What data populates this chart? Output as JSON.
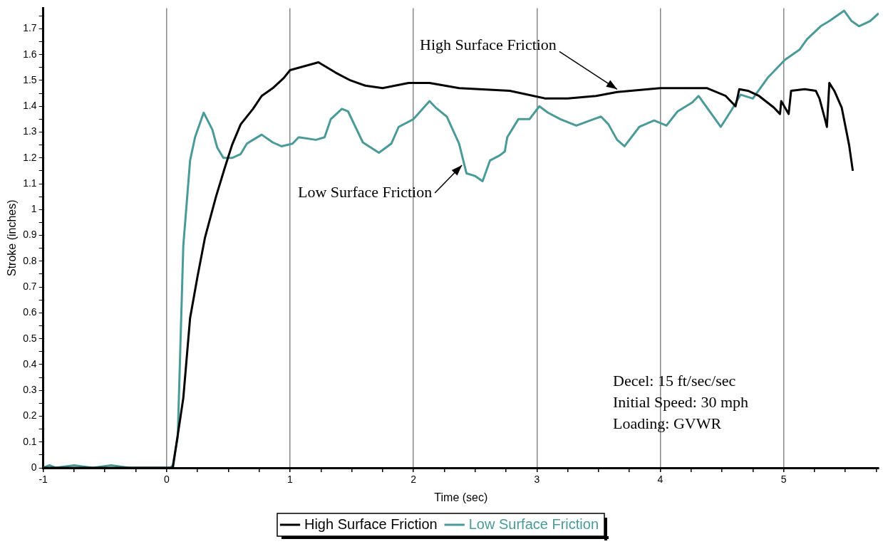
{
  "chart_data": {
    "type": "line",
    "xlabel": "Time (sec)",
    "ylabel": "Stroke (inches)",
    "xlim": [
      -1,
      5.77
    ],
    "ylim": [
      0,
      1.78
    ],
    "xticks": [
      -1,
      {
        "value": -0.75,
        "label": null
      },
      {
        "value": -0.5,
        "label": null
      },
      {
        "value": -0.25,
        "label": null
      },
      0,
      {
        "value": 0.25,
        "label": null
      },
      {
        "value": 0.5,
        "label": null
      },
      {
        "value": 0.75,
        "label": null
      },
      1,
      {
        "value": 1.25,
        "label": null
      },
      {
        "value": 1.5,
        "label": null
      },
      {
        "value": 1.75,
        "label": null
      },
      2,
      {
        "value": 2.25,
        "label": null
      },
      {
        "value": 2.5,
        "label": null
      },
      {
        "value": 2.75,
        "label": null
      },
      3,
      {
        "value": 3.25,
        "label": null
      },
      {
        "value": 3.5,
        "label": null
      },
      {
        "value": 3.75,
        "label": null
      },
      4,
      {
        "value": 4.25,
        "label": null
      },
      {
        "value": 4.5,
        "label": null
      },
      {
        "value": 4.75,
        "label": null
      },
      5,
      {
        "value": 5.25,
        "label": null
      },
      {
        "value": 5.5,
        "label": null
      },
      {
        "value": 5.75,
        "label": null
      }
    ],
    "yticks": [
      0,
      {
        "value": 0.05,
        "label": null
      },
      0.1,
      {
        "value": 0.15,
        "label": null
      },
      0.2,
      {
        "value": 0.25,
        "label": null
      },
      0.3,
      {
        "value": 0.35,
        "label": null
      },
      0.4,
      {
        "value": 0.45,
        "label": null
      },
      0.5,
      {
        "value": 0.55,
        "label": null
      },
      0.6,
      {
        "value": 0.65,
        "label": null
      },
      0.7,
      {
        "value": 0.75,
        "label": null
      },
      0.8,
      {
        "value": 0.85,
        "label": null
      },
      0.9,
      {
        "value": 0.95,
        "label": null
      },
      1,
      {
        "value": 1.05,
        "label": null
      },
      1.1,
      {
        "value": 1.15,
        "label": null
      },
      1.2,
      {
        "value": 1.25,
        "label": null
      },
      1.3,
      {
        "value": 1.35,
        "label": null
      },
      1.4,
      {
        "value": 1.45,
        "label": null
      },
      1.5,
      {
        "value": 1.55,
        "label": null
      },
      1.6,
      {
        "value": 1.65,
        "label": null
      },
      1.7,
      {
        "value": 1.75,
        "label": null
      }
    ],
    "grid": "x",
    "legend": "bottom",
    "marker": "none",
    "line_style": "solid",
    "series": [
      {
        "name": "High Surface Friction",
        "color": "#000000",
        "x": [
          -1,
          0.05,
          0.135,
          0.19,
          0.25,
          0.31,
          0.4,
          0.47,
          0.53,
          0.6,
          0.7,
          0.77,
          0.86,
          0.95,
          1.0,
          1.23,
          1.37,
          1.49,
          1.61,
          1.75,
          1.96,
          2.13,
          2.37,
          2.78,
          3.07,
          3.25,
          3.48,
          3.65,
          4.0,
          4.38,
          4.53,
          4.61,
          4.64,
          4.71,
          4.8,
          4.92,
          4.97,
          4.98,
          5.04,
          5.06,
          5.17,
          5.26,
          5.29,
          5.34,
          5.35,
          5.37,
          5.41,
          5.47,
          5.53,
          5.56
        ],
        "values": [
          0,
          0,
          0.27,
          0.58,
          0.74,
          0.89,
          1.05,
          1.16,
          1.25,
          1.33,
          1.39,
          1.44,
          1.47,
          1.51,
          1.54,
          1.57,
          1.53,
          1.5,
          1.48,
          1.47,
          1.49,
          1.49,
          1.47,
          1.46,
          1.43,
          1.43,
          1.44,
          1.455,
          1.47,
          1.47,
          1.44,
          1.4,
          1.466,
          1.46,
          1.44,
          1.395,
          1.37,
          1.42,
          1.37,
          1.46,
          1.466,
          1.46,
          1.43,
          1.34,
          1.32,
          1.49,
          1.46,
          1.395,
          1.25,
          1.15
        ]
      },
      {
        "name": "Low Surface Friction",
        "color": "#4a9a98",
        "x": [
          -1,
          -0.95,
          -0.9,
          -0.75,
          -0.6,
          -0.45,
          -0.3,
          0.03,
          0.05,
          0.09,
          0.135,
          0.19,
          0.23,
          0.3,
          0.37,
          0.41,
          0.46,
          0.53,
          0.6,
          0.65,
          0.7,
          0.77,
          0.86,
          0.93,
          1.02,
          1.07,
          1.21,
          1.28,
          1.33,
          1.42,
          1.47,
          1.59,
          1.72,
          1.82,
          1.88,
          2.0,
          2.13,
          2.18,
          2.27,
          2.37,
          2.43,
          2.5,
          2.56,
          2.62,
          2.7,
          2.74,
          2.76,
          2.85,
          2.94,
          3.02,
          3.09,
          3.19,
          3.32,
          3.46,
          3.52,
          3.58,
          3.65,
          3.71,
          3.83,
          3.95,
          4.05,
          4.14,
          4.26,
          4.31,
          4.43,
          4.49,
          4.59,
          4.65,
          4.75,
          4.87,
          5.01,
          5.13,
          5.19,
          5.3,
          5.37,
          5.49,
          5.55,
          5.61,
          5.7,
          5.77
        ],
        "values": [
          0,
          0.01,
          0,
          0.01,
          0,
          0.01,
          0,
          0,
          0.01,
          0.12,
          0.86,
          1.19,
          1.28,
          1.375,
          1.31,
          1.24,
          1.2,
          1.2,
          1.215,
          1.255,
          1.27,
          1.29,
          1.26,
          1.245,
          1.255,
          1.28,
          1.27,
          1.28,
          1.35,
          1.39,
          1.38,
          1.26,
          1.22,
          1.255,
          1.32,
          1.35,
          1.42,
          1.395,
          1.36,
          1.255,
          1.14,
          1.13,
          1.11,
          1.19,
          1.21,
          1.225,
          1.28,
          1.35,
          1.35,
          1.4,
          1.375,
          1.35,
          1.325,
          1.35,
          1.36,
          1.33,
          1.27,
          1.245,
          1.32,
          1.345,
          1.325,
          1.38,
          1.415,
          1.44,
          1.36,
          1.32,
          1.395,
          1.445,
          1.43,
          1.51,
          1.58,
          1.62,
          1.66,
          1.71,
          1.73,
          1.77,
          1.73,
          1.71,
          1.73,
          1.76
        ]
      }
    ],
    "annotations": [
      {
        "text": "High Surface Friction",
        "x": 3.65,
        "y": 1.455
      },
      {
        "text": "Low Surface Friction",
        "x": 2.41,
        "y": 1.18
      },
      "Decel: 15 ft/sec/sec",
      "Initial Speed: 30 mph",
      "Loading: GVWR"
    ]
  }
}
